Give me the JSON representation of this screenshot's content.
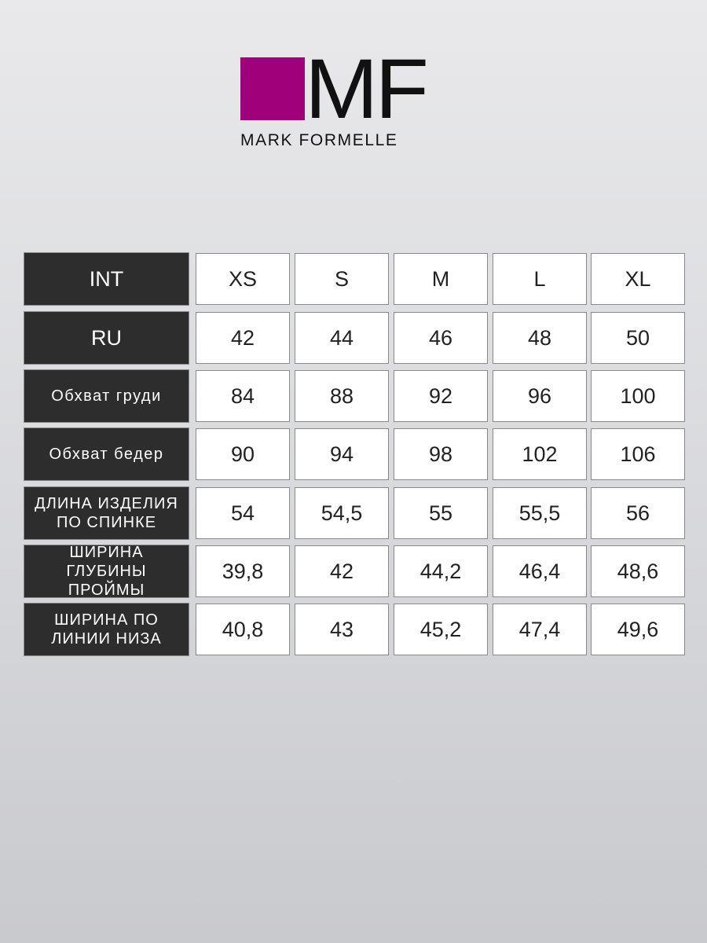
{
  "logo": {
    "mark": "MF",
    "brand": "MARK FORMELLE",
    "accent": "#a0007a"
  },
  "table": {
    "rows": [
      {
        "label": "INT",
        "values": [
          "XS",
          "S",
          "M",
          "L",
          "XL"
        ]
      },
      {
        "label": "RU",
        "values": [
          "42",
          "44",
          "46",
          "48",
          "50"
        ]
      },
      {
        "label": "Обхват груди",
        "values": [
          "84",
          "88",
          "92",
          "96",
          "100"
        ]
      },
      {
        "label": "Обхват бедер",
        "values": [
          "90",
          "94",
          "98",
          "102",
          "106"
        ]
      },
      {
        "label": "ДЛИНА ИЗДЕЛИЯ ПО СПИНКЕ",
        "values": [
          "54",
          "54,5",
          "55",
          "55,5",
          "56"
        ]
      },
      {
        "label": "ШИРИНА ГЛУБИНЫ ПРОЙМЫ",
        "values": [
          "39,8",
          "42",
          "44,2",
          "46,4",
          "48,6"
        ]
      },
      {
        "label": "ШИРИНА ПО ЛИНИИ НИЗА",
        "values": [
          "40,8",
          "43",
          "45,2",
          "47,4",
          "49,6"
        ]
      }
    ]
  }
}
